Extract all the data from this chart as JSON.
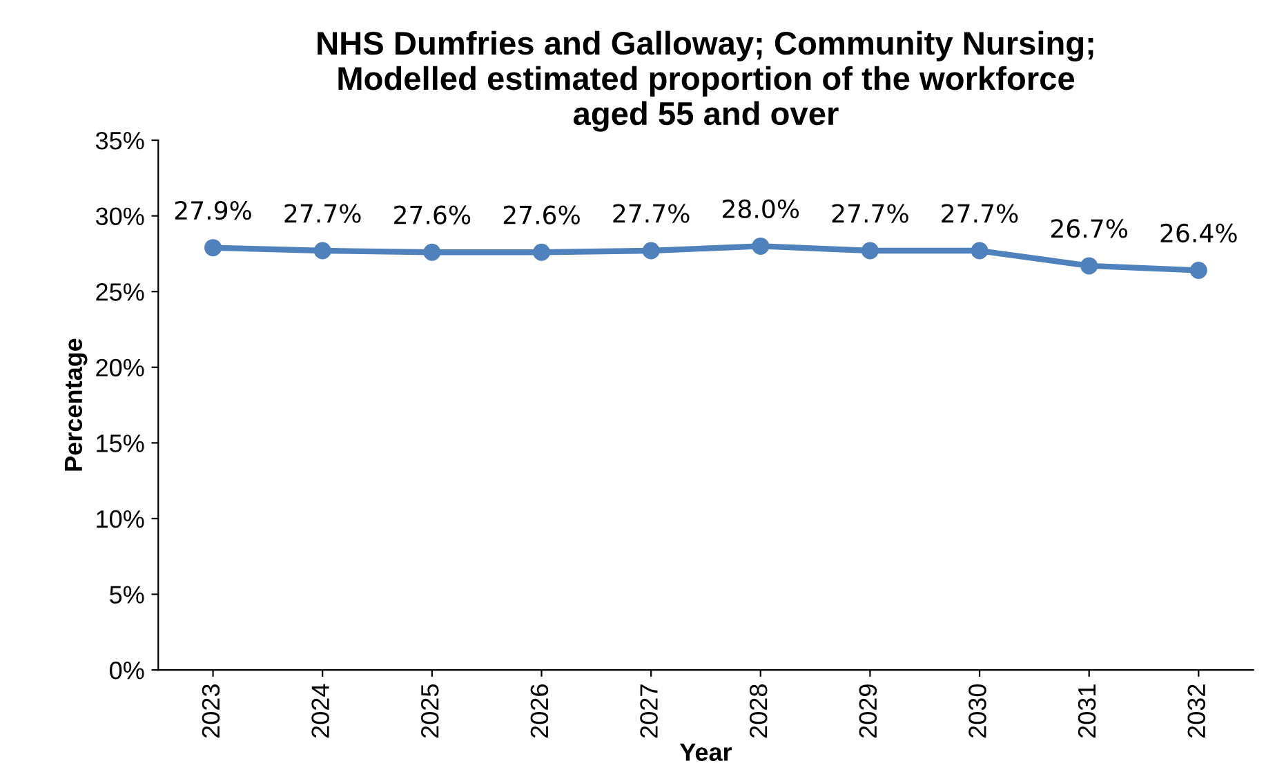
{
  "chart_data": {
    "type": "line",
    "title": "NHS Dumfries and Galloway; Community Nursing;\nModelled estimated proportion of the workforce\naged 55 and over",
    "xlabel": "Year",
    "ylabel": "Percentage",
    "categories": [
      "2023",
      "2024",
      "2025",
      "2026",
      "2027",
      "2028",
      "2029",
      "2030",
      "2031",
      "2032"
    ],
    "series": [
      {
        "color": "#4f81bd",
        "values": [
          27.9,
          27.7,
          27.6,
          27.6,
          27.7,
          28.0,
          27.7,
          27.7,
          26.7,
          26.4
        ],
        "value_labels": [
          "27.9%",
          "27.7%",
          "27.6%",
          "27.6%",
          "27.7%",
          "28.0%",
          "27.7%",
          "27.7%",
          "26.7%",
          "26.4%"
        ]
      }
    ],
    "ylim": [
      0,
      35
    ],
    "yticks": [
      {
        "value": 0,
        "label": "0%"
      },
      {
        "value": 5,
        "label": "5%"
      },
      {
        "value": 10,
        "label": "10%"
      },
      {
        "value": 15,
        "label": "15%"
      },
      {
        "value": 20,
        "label": "20%"
      },
      {
        "value": 25,
        "label": "25%"
      },
      {
        "value": 30,
        "label": "30%"
      },
      {
        "value": 35,
        "label": "35%"
      }
    ],
    "marker": "circle",
    "line_style": "solid",
    "grid": false,
    "legend": false
  }
}
